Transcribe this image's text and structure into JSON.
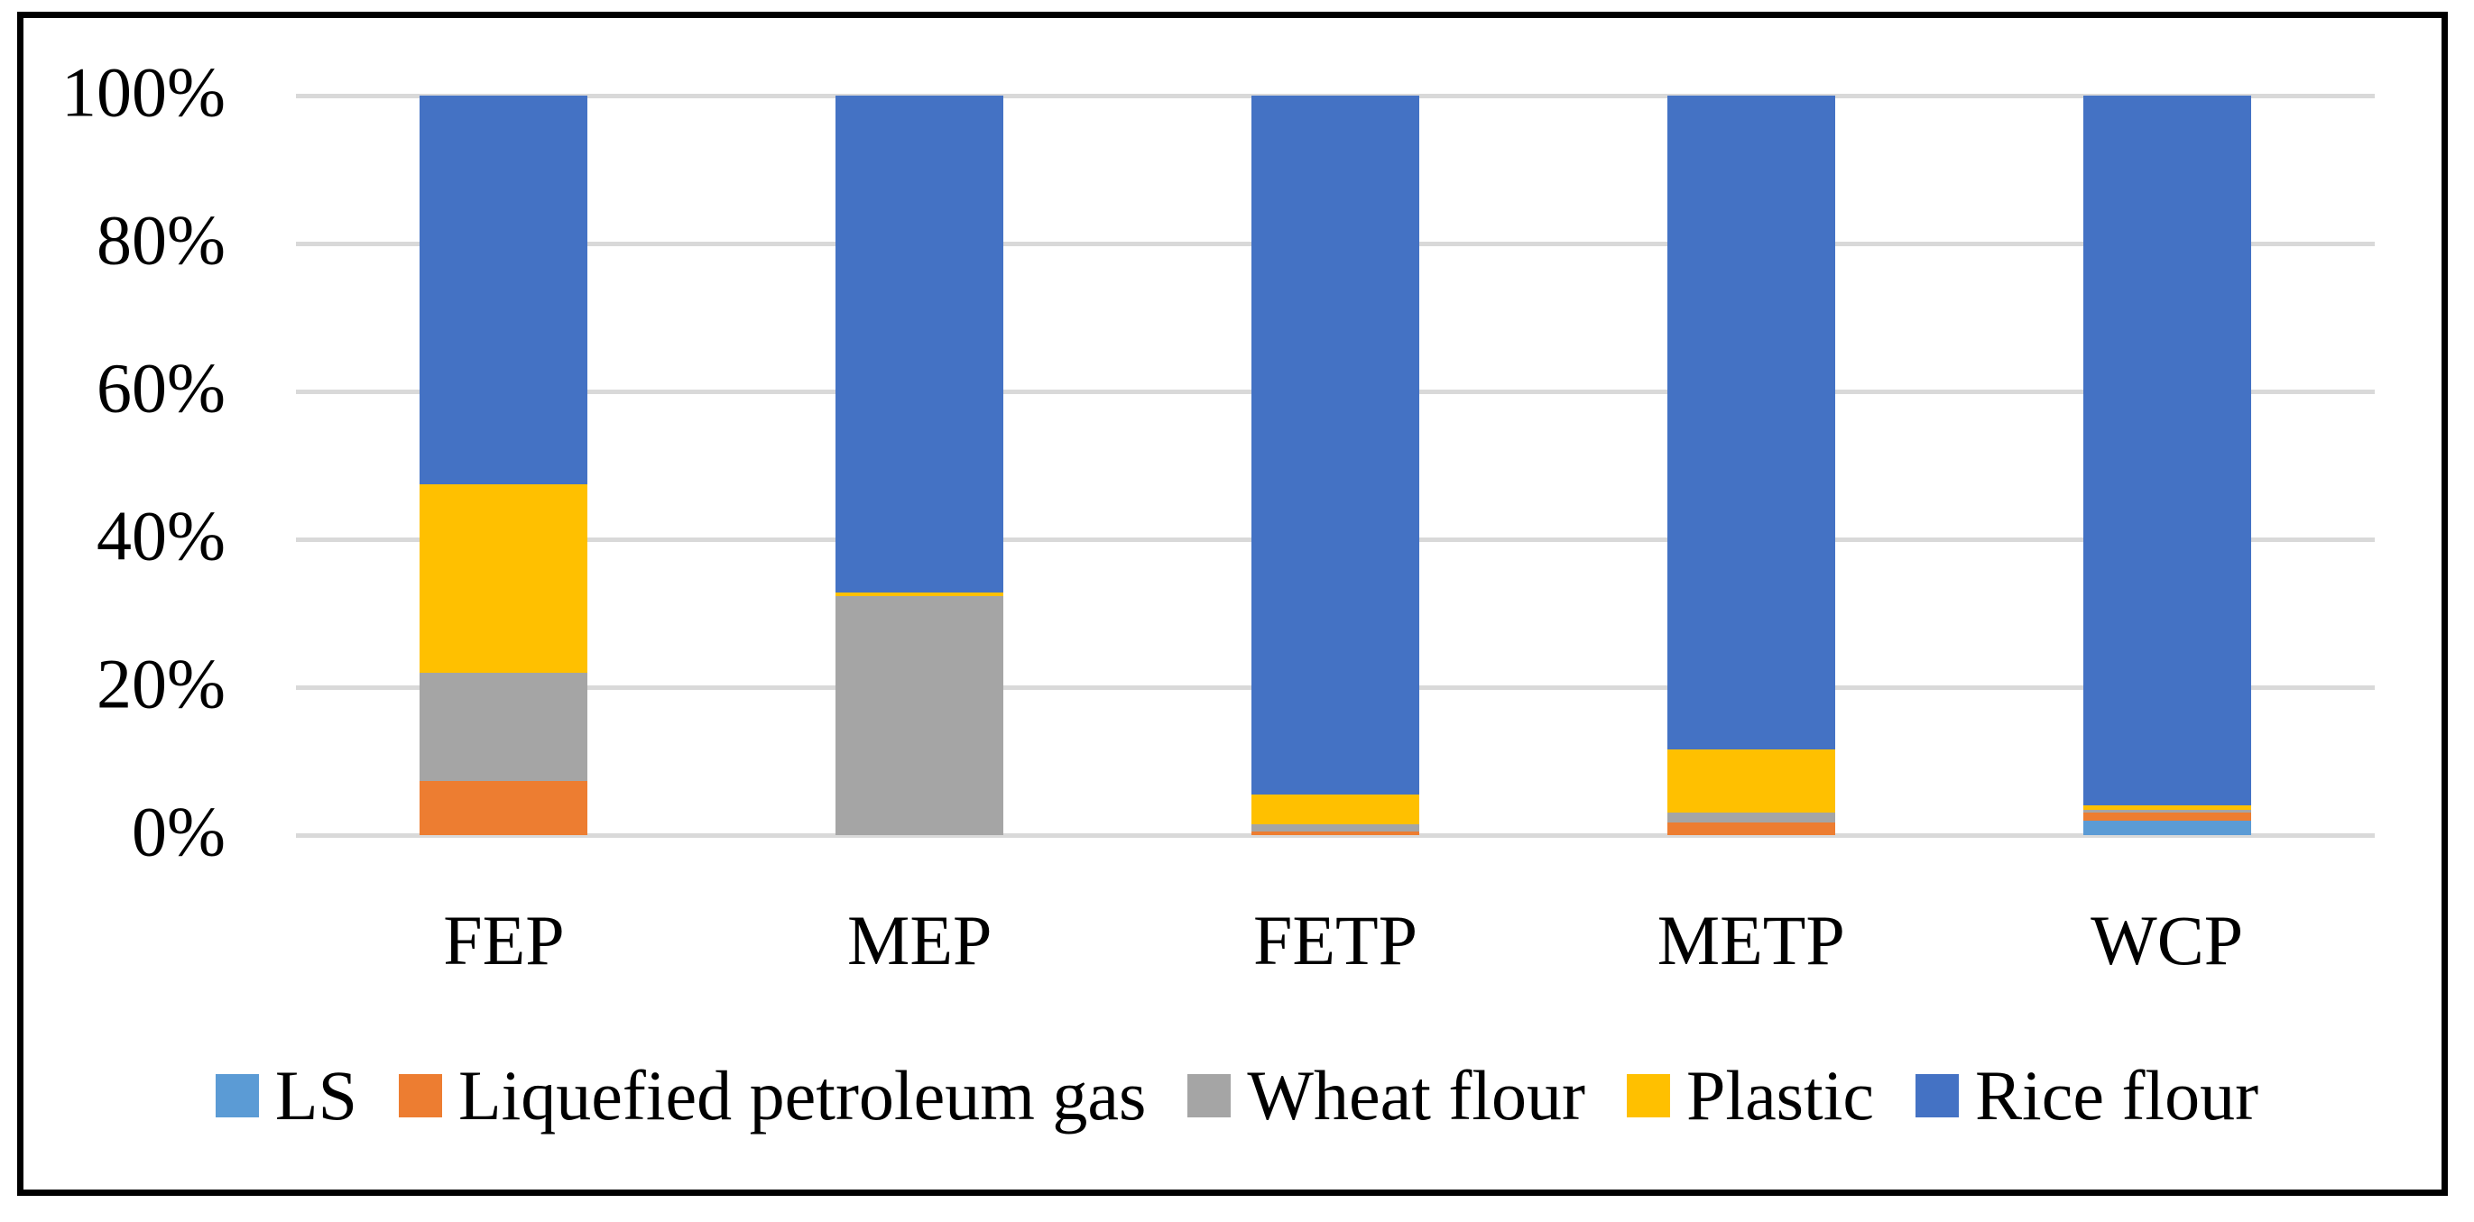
{
  "chart_data": {
    "type": "bar",
    "variant": "stacked-100",
    "title": "",
    "xlabel": "",
    "ylabel": "",
    "ylim": [
      0,
      100
    ],
    "yticks": [
      "0%",
      "20%",
      "40%",
      "60%",
      "80%",
      "100%"
    ],
    "grid": true,
    "legend_position": "bottom",
    "categories": [
      "FEP",
      "MEP",
      "FETP",
      "METP",
      "WCP"
    ],
    "series": [
      {
        "name": "LS",
        "color": "#5B9BD5",
        "values": [
          0,
          0,
          0,
          0,
          1.9
        ]
      },
      {
        "name": "Liquefied petroleum gas",
        "color": "#ED7D31",
        "values": [
          7.3,
          0,
          0.5,
          1.7,
          1.2
        ]
      },
      {
        "name": "Wheat flour",
        "color": "#A5A5A5",
        "values": [
          14.7,
          32.3,
          1.0,
          1.4,
          0.3
        ]
      },
      {
        "name": "Plastic",
        "color": "#FFC000",
        "values": [
          25.5,
          0.5,
          4.0,
          8.5,
          0.6
        ]
      },
      {
        "name": "Rice flour",
        "color": "#4472C4",
        "values": [
          52.5,
          67.2,
          94.5,
          88.4,
          96.0
        ]
      }
    ]
  },
  "style": {
    "gridline_color": "#D9D9D9",
    "border_color": "#000000",
    "background_color": "#FFFFFF",
    "text_color": "#000000"
  }
}
